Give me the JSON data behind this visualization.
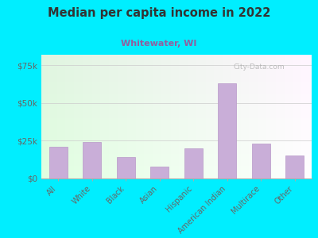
{
  "title": "Median per capita income in 2022",
  "subtitle": "Whitewater, WI",
  "categories": [
    "All",
    "White",
    "Black",
    "Asian",
    "Hispanic",
    "American Indian",
    "Multirace",
    "Other"
  ],
  "values": [
    21000,
    24000,
    14000,
    8000,
    20000,
    63000,
    23000,
    15000
  ],
  "bar_color": "#c9aed8",
  "bar_edge_color": "#b898c8",
  "background_outer": "#00eeff",
  "title_color": "#333333",
  "subtitle_color": "#9060a0",
  "tick_label_color": "#666666",
  "ytick_labels": [
    "$0",
    "$25k",
    "$50k",
    "$75k"
  ],
  "ytick_values": [
    0,
    25000,
    50000,
    75000
  ],
  "ylim": [
    0,
    82000
  ],
  "watermark": "City-Data.com"
}
